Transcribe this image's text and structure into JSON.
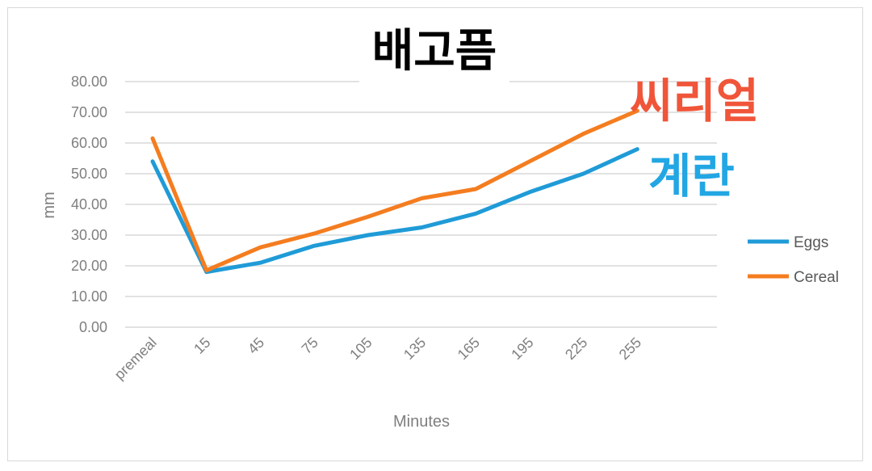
{
  "chart_data": {
    "type": "line",
    "title": "배고픔",
    "xlabel": "Minutes",
    "ylabel": "mm",
    "categories": [
      "premeal",
      "15",
      "45",
      "75",
      "105",
      "135",
      "165",
      "195",
      "225",
      "255"
    ],
    "ylim": [
      0,
      80
    ],
    "yticks": [
      "0.00",
      "10.00",
      "20.00",
      "30.00",
      "40.00",
      "50.00",
      "60.00",
      "70.00",
      "80.00"
    ],
    "grid": true,
    "legend_position": "right",
    "series": [
      {
        "name": "Eggs",
        "color": "#1f9bd7",
        "values": [
          54,
          18,
          21,
          26.5,
          30,
          32.5,
          37,
          44,
          50,
          58
        ]
      },
      {
        "name": "Cereal",
        "color": "#f47d20",
        "values": [
          61.5,
          18.5,
          26,
          30.5,
          36,
          42,
          45,
          54,
          63,
          70.5
        ]
      }
    ],
    "annotations": [
      {
        "text": "씨리얼",
        "color": "#f0553a"
      },
      {
        "text": "계란",
        "color": "#22a6e4"
      }
    ]
  }
}
